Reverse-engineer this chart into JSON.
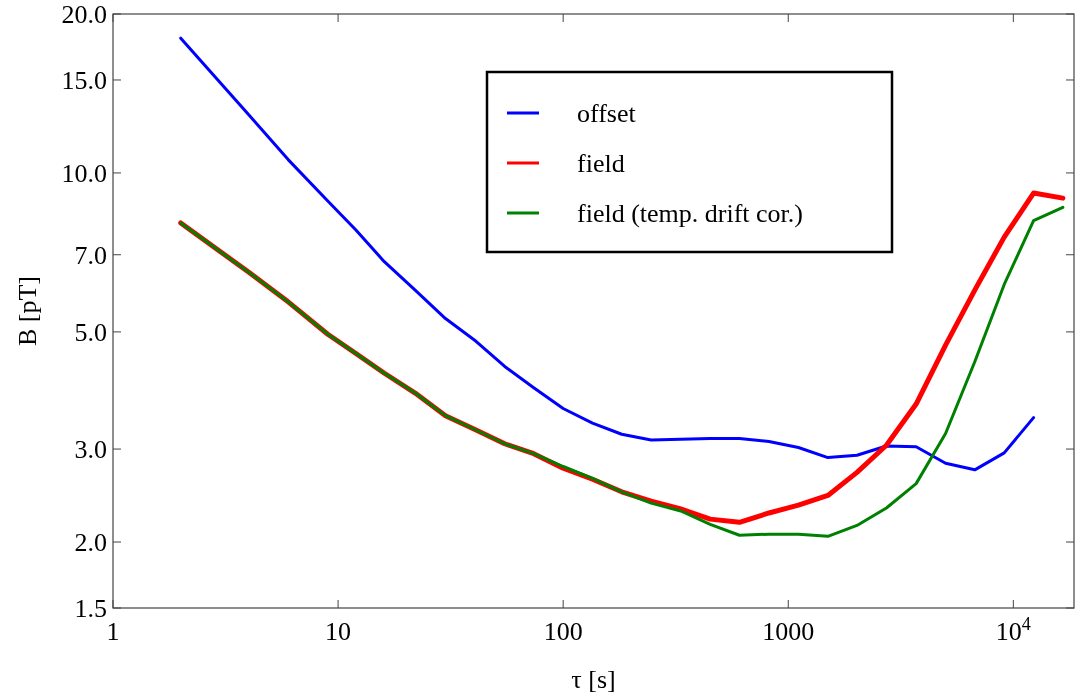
{
  "chart_data": {
    "type": "line",
    "xlabel": "τ [s]",
    "ylabel": "B [pT]",
    "log": "xy",
    "legend": "top right",
    "grid": false,
    "xlim": [
      1,
      18600
    ],
    "xticks": [
      1,
      10,
      100,
      1000,
      {
        "value": 10000,
        "label": "10$^{4}$"
      }
    ],
    "ylim": [
      1.5,
      20
    ],
    "yticks": [
      {
        "value": 1.5,
        "label": "1.5"
      },
      {
        "value": 2,
        "label": "2.0"
      },
      {
        "value": 3,
        "label": "3.0"
      },
      {
        "value": 5,
        "label": "5.0"
      },
      {
        "value": 7,
        "label": "7.0"
      },
      {
        "value": 10,
        "label": "10.0"
      },
      {
        "value": 15,
        "label": "15.0"
      },
      {
        "value": 20,
        "label": "20.0"
      }
    ],
    "x": [
      2,
      4,
      6,
      9,
      12,
      16,
      22,
      30,
      41,
      55,
      74,
      100,
      135,
      182,
      246,
      333,
      450,
      607,
      821,
      1110,
      1500,
      2020,
      2730,
      3700,
      5000,
      6740,
      9110,
      12300,
      16600
    ],
    "series": [
      {
        "name": "offset",
        "color": "#0000ff",
        "values": [
          18.0,
          12.9,
          10.6,
          8.85,
          7.8,
          6.8,
          6.0,
          5.3,
          4.8,
          4.3,
          3.92,
          3.58,
          3.36,
          3.2,
          3.12,
          3.13,
          3.14,
          3.14,
          3.1,
          3.02,
          2.89,
          2.92,
          3.04,
          3.03,
          2.82,
          2.74,
          2.95,
          3.44,
          null
        ]
      },
      {
        "name": "field",
        "color": "#ff0000",
        "values": [
          8.04,
          6.49,
          5.7,
          4.95,
          4.55,
          4.18,
          3.83,
          3.47,
          3.26,
          3.07,
          2.94,
          2.76,
          2.63,
          2.49,
          2.39,
          2.31,
          2.21,
          2.18,
          2.27,
          2.35,
          2.45,
          2.71,
          3.05,
          3.65,
          4.72,
          6.0,
          7.56,
          9.16,
          8.96
        ]
      },
      {
        "name": "field (temp. drift cor.)",
        "color": "#008000",
        "values": [
          8.04,
          6.49,
          5.7,
          4.95,
          4.55,
          4.18,
          3.83,
          3.47,
          3.26,
          3.07,
          2.94,
          2.78,
          2.64,
          2.49,
          2.37,
          2.29,
          2.16,
          2.06,
          2.07,
          2.07,
          2.05,
          2.15,
          2.32,
          2.58,
          3.21,
          4.39,
          6.15,
          8.12,
          8.61
        ]
      }
    ]
  }
}
